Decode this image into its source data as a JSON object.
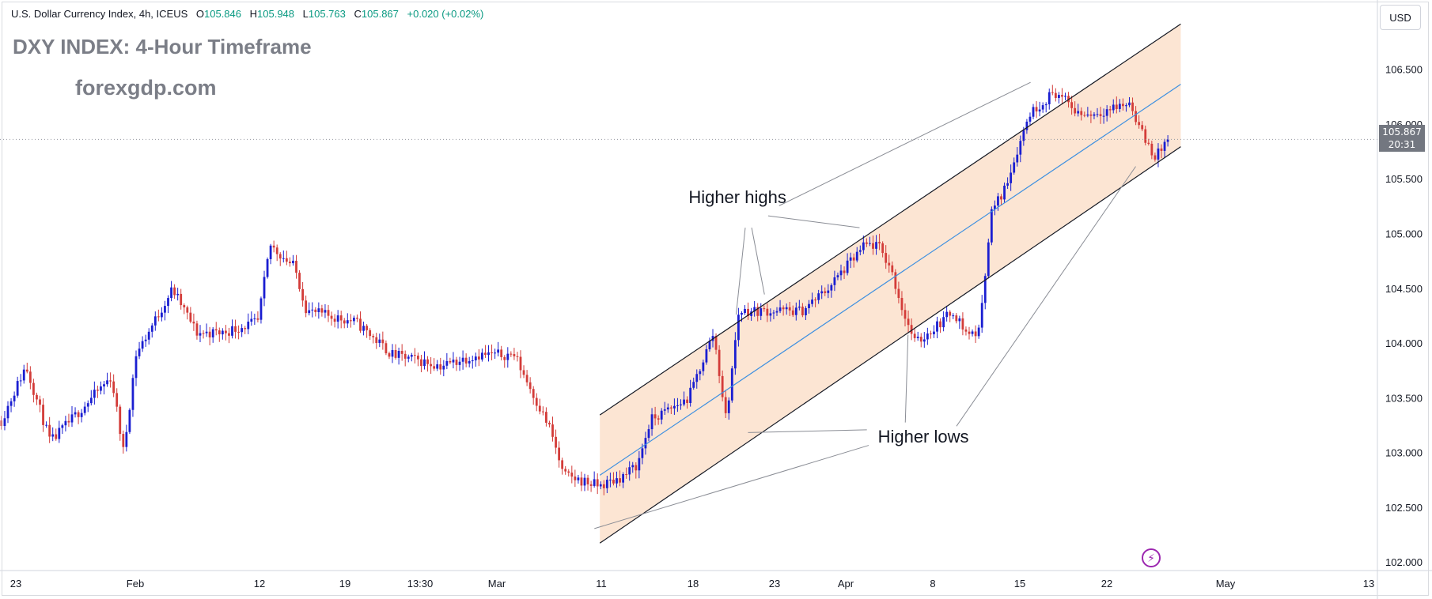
{
  "header": {
    "symbol_line": "U.S. Dollar Currency Index, 4h, ICEUS",
    "ohlc": [
      {
        "label": "O",
        "value": "105.846"
      },
      {
        "label": "H",
        "value": "105.948"
      },
      {
        "label": "L",
        "value": "105.763"
      },
      {
        "label": "C",
        "value": "105.867"
      }
    ],
    "change": "+0.020 (+0.02%)",
    "title": "DXY INDEX: 4-Hour Timeframe",
    "watermark": "forexgdp.com"
  },
  "price_scale": {
    "currency": "USD",
    "last_price": "105.867",
    "countdown": "20:31"
  },
  "chart_data": {
    "type": "candlestick",
    "y_ticks": [
      "106.500",
      "106.000",
      "105.500",
      "105.000",
      "104.500",
      "104.000",
      "103.500",
      "103.000",
      "102.500",
      "102.000"
    ],
    "ylim": [
      101.98,
      106.93
    ],
    "x_ticks": [
      "23",
      "Feb",
      "12",
      "19",
      "13:30",
      "Mar",
      "11",
      "18",
      "23",
      "Apr",
      "8",
      "15",
      "22",
      "May",
      "13"
    ],
    "last_price": 105.867,
    "colors": {
      "up": "#1a1ed1",
      "down": "#d33c39",
      "channel_fill": "#fbe0cb",
      "midline": "#3d8fe0"
    },
    "channel": {
      "upper": {
        "start": [
          "Mar 11",
          103.35
        ],
        "end": [
          "Apr 26",
          106.92
        ]
      },
      "lower": {
        "start": [
          "Mar 11",
          102.18
        ],
        "end": [
          "Apr 26",
          105.8
        ]
      },
      "midline": {
        "start": [
          "Mar 11",
          102.8
        ],
        "end": [
          "Apr 26",
          106.37
        ]
      }
    },
    "annotations": [
      "Higher highs",
      "Higher lows"
    ],
    "ohlc_key_points": [
      {
        "date": "Jan 22",
        "price": 103.3
      },
      {
        "date": "Jan 24",
        "price": 103.8
      },
      {
        "date": "Jan 26",
        "price": 103.1
      },
      {
        "date": "Jan 31",
        "price": 103.7
      },
      {
        "date": "Feb 1",
        "price": 103.0
      },
      {
        "date": "Feb 2",
        "price": 103.9
      },
      {
        "date": "Feb 5",
        "price": 104.5
      },
      {
        "date": "Feb 7",
        "price": 104.1
      },
      {
        "date": "Feb 9",
        "price": 104.1
      },
      {
        "date": "Feb 12",
        "price": 104.2
      },
      {
        "date": "Feb 13",
        "price": 104.9
      },
      {
        "date": "Feb 15",
        "price": 104.7
      },
      {
        "date": "Feb 16",
        "price": 104.3
      },
      {
        "date": "Feb 20",
        "price": 104.2
      },
      {
        "date": "Feb 23",
        "price": 103.9
      },
      {
        "date": "Feb 27",
        "price": 103.8
      },
      {
        "date": "Mar 1",
        "price": 103.9
      },
      {
        "date": "Mar 4",
        "price": 103.9
      },
      {
        "date": "Mar 7",
        "price": 103.2
      },
      {
        "date": "Mar 8",
        "price": 102.8
      },
      {
        "date": "Mar 11",
        "price": 102.7
      },
      {
        "date": "Mar 13",
        "price": 102.8
      },
      {
        "date": "Mar 14",
        "price": 102.9
      },
      {
        "date": "Mar 15",
        "price": 103.3
      },
      {
        "date": "Mar 18",
        "price": 103.5
      },
      {
        "date": "Mar 19",
        "price": 103.8
      },
      {
        "date": "Mar 20",
        "price": 104.1
      },
      {
        "date": "Mar 21",
        "price": 103.3
      },
      {
        "date": "Mar 22",
        "price": 104.3
      },
      {
        "date": "Mar 25",
        "price": 104.3
      },
      {
        "date": "Mar 27",
        "price": 104.3
      },
      {
        "date": "Mar 29",
        "price": 104.5
      },
      {
        "date": "Apr 1",
        "price": 104.9
      },
      {
        "date": "Apr 2",
        "price": 104.9
      },
      {
        "date": "Apr 3",
        "price": 104.7
      },
      {
        "date": "Apr 4",
        "price": 104.3
      },
      {
        "date": "Apr 5",
        "price": 104.0
      },
      {
        "date": "Apr 8",
        "price": 104.3
      },
      {
        "date": "Apr 9",
        "price": 104.1
      },
      {
        "date": "Apr 10",
        "price": 104.1
      },
      {
        "date": "Apr 11",
        "price": 105.2
      },
      {
        "date": "Apr 12",
        "price": 105.4
      },
      {
        "date": "Apr 14",
        "price": 106.1
      },
      {
        "date": "Apr 15",
        "price": 106.2
      },
      {
        "date": "Apr 16",
        "price": 106.3
      },
      {
        "date": "Apr 17",
        "price": 106.2
      },
      {
        "date": "Apr 18",
        "price": 106.1
      },
      {
        "date": "Apr 19",
        "price": 106.1
      },
      {
        "date": "Apr 22",
        "price": 106.2
      },
      {
        "date": "Apr 23",
        "price": 105.9
      },
      {
        "date": "Apr 24",
        "price": 105.7
      },
      {
        "date": "Apr 25",
        "price": 105.867
      }
    ]
  }
}
